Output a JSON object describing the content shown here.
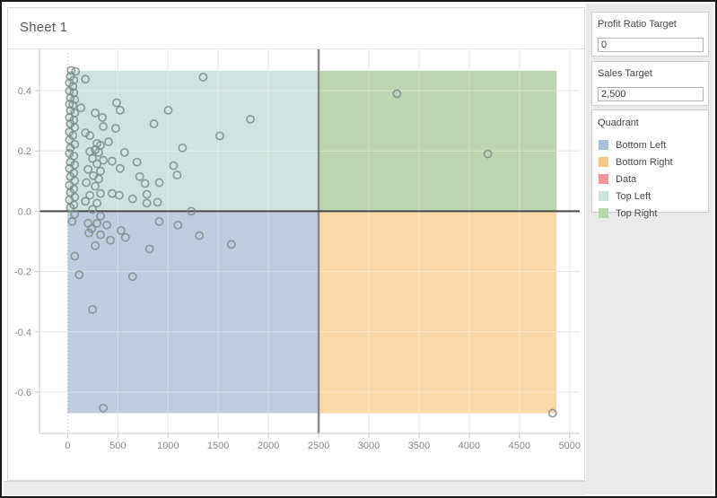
{
  "chart": {
    "title": "Sheet 1"
  },
  "chart_data": {
    "type": "scatter",
    "title": "Sheet 1",
    "xlabel": "",
    "ylabel": "",
    "xlim": [
      -280,
      5100
    ],
    "ylim": [
      -0.737,
      0.537
    ],
    "x_ticks": [
      0,
      500,
      1000,
      1500,
      2000,
      2500,
      3000,
      3500,
      4000,
      4500,
      5000
    ],
    "y_ticks": [
      -0.6,
      -0.4,
      -0.2,
      0.0,
      0.2,
      0.4
    ],
    "grid": true,
    "legend_position": "right",
    "reference_lines": {
      "sales_target_x": 2500,
      "profit_ratio_target_y": 0
    },
    "quadrant_bands": {
      "x_range": [
        0,
        4870
      ],
      "y_range": [
        -0.67,
        0.466
      ],
      "colors": {
        "top_left": "#cfe3df",
        "top_right": "#bcd4b0",
        "bottom_left": "#bfccdf",
        "bottom_right": "#f9d8aa"
      }
    },
    "marker": {
      "shape": "open-circle",
      "color": "#7b8d8b"
    },
    "points": [
      [
        35,
        0.467
      ],
      [
        80,
        0.464
      ],
      [
        27,
        0.447
      ],
      [
        62,
        0.435
      ],
      [
        18,
        0.426
      ],
      [
        177,
        0.438
      ],
      [
        53,
        0.414
      ],
      [
        18,
        0.399
      ],
      [
        62,
        0.393
      ],
      [
        27,
        0.376
      ],
      [
        71,
        0.37
      ],
      [
        18,
        0.355
      ],
      [
        53,
        0.352
      ],
      [
        133,
        0.343
      ],
      [
        27,
        0.334
      ],
      [
        71,
        0.326
      ],
      [
        275,
        0.326
      ],
      [
        346,
        0.311
      ],
      [
        18,
        0.311
      ],
      [
        62,
        0.302
      ],
      [
        27,
        0.29
      ],
      [
        355,
        0.281
      ],
      [
        71,
        0.278
      ],
      [
        18,
        0.263
      ],
      [
        177,
        0.26
      ],
      [
        222,
        0.251
      ],
      [
        53,
        0.251
      ],
      [
        18,
        0.237
      ],
      [
        293,
        0.225
      ],
      [
        328,
        0.219
      ],
      [
        71,
        0.222
      ],
      [
        27,
        0.21
      ],
      [
        275,
        0.204
      ],
      [
        222,
        0.198
      ],
      [
        310,
        0.195
      ],
      [
        18,
        0.192
      ],
      [
        62,
        0.183
      ],
      [
        248,
        0.175
      ],
      [
        355,
        0.169
      ],
      [
        27,
        0.163
      ],
      [
        293,
        0.157
      ],
      [
        71,
        0.154
      ],
      [
        18,
        0.142
      ],
      [
        204,
        0.139
      ],
      [
        328,
        0.133
      ],
      [
        62,
        0.127
      ],
      [
        257,
        0.118
      ],
      [
        27,
        0.115
      ],
      [
        310,
        0.107
      ],
      [
        71,
        0.101
      ],
      [
        186,
        0.095
      ],
      [
        18,
        0.086
      ],
      [
        275,
        0.083
      ],
      [
        62,
        0.074
      ],
      [
        27,
        0.062
      ],
      [
        328,
        0.059
      ],
      [
        222,
        0.053
      ],
      [
        71,
        0.047
      ],
      [
        18,
        0.038
      ],
      [
        177,
        0.033
      ],
      [
        293,
        0.027
      ],
      [
        62,
        0.021
      ],
      [
        27,
        0.012
      ],
      [
        248,
        0.006
      ],
      [
        1350,
        0.445
      ],
      [
        488,
        0.36
      ],
      [
        523,
        0.335
      ],
      [
        1002,
        0.335
      ],
      [
        860,
        0.29
      ],
      [
        479,
        0.275
      ],
      [
        1516,
        0.25
      ],
      [
        408,
        0.23
      ],
      [
        1820,
        0.305
      ],
      [
        1144,
        0.21
      ],
      [
        567,
        0.195
      ],
      [
        443,
        0.166
      ],
      [
        691,
        0.163
      ],
      [
        1055,
        0.151
      ],
      [
        523,
        0.142
      ],
      [
        1090,
        0.12
      ],
      [
        718,
        0.115
      ],
      [
        913,
        0.095
      ],
      [
        771,
        0.092
      ],
      [
        443,
        0.059
      ],
      [
        514,
        0.053
      ],
      [
        789,
        0.056
      ],
      [
        647,
        0.041
      ],
      [
        895,
        0.03
      ],
      [
        789,
        0.027
      ],
      [
        1232,
        0.0
      ],
      [
        71,
        -0.01
      ],
      [
        44,
        -0.034
      ],
      [
        328,
        -0.016
      ],
      [
        204,
        -0.04
      ],
      [
        293,
        -0.04
      ],
      [
        239,
        -0.058
      ],
      [
        213,
        -0.072
      ],
      [
        390,
        -0.046
      ],
      [
        532,
        -0.064
      ],
      [
        576,
        -0.087
      ],
      [
        328,
        -0.078
      ],
      [
        275,
        -0.114
      ],
      [
        426,
        -0.096
      ],
      [
        913,
        -0.034
      ],
      [
        1099,
        -0.046
      ],
      [
        1312,
        -0.081
      ],
      [
        1631,
        -0.11
      ],
      [
        816,
        -0.125
      ],
      [
        71,
        -0.149
      ],
      [
        115,
        -0.211
      ],
      [
        647,
        -0.217
      ],
      [
        248,
        -0.326
      ],
      [
        355,
        -0.653
      ],
      [
        3280,
        0.39
      ],
      [
        4185,
        0.19
      ],
      [
        4830,
        -0.67
      ]
    ]
  },
  "panel": {
    "profit_ratio_target": {
      "label": "Profit Ratio Target",
      "value": "0"
    },
    "sales_target": {
      "label": "Sales Target",
      "value": "2,500"
    },
    "legend": {
      "title": "Quadrant",
      "items": [
        {
          "label": "Bottom Left",
          "color": "#a8c1de"
        },
        {
          "label": "Bottom Right",
          "color": "#f7c78a"
        },
        {
          "label": "Data",
          "color": "#f0989b"
        },
        {
          "label": "Top Left",
          "color": "#cde4e0"
        },
        {
          "label": "Top Right",
          "color": "#b5d8ab"
        }
      ]
    }
  },
  "style": {
    "grid_color": "#e6e6e6",
    "axis_color": "#c9c9c9",
    "tick_label_color": "#8a8a8a",
    "ref_line_x_color": "#8a8a8a",
    "ref_line_y_color": "#4a4a4a"
  }
}
